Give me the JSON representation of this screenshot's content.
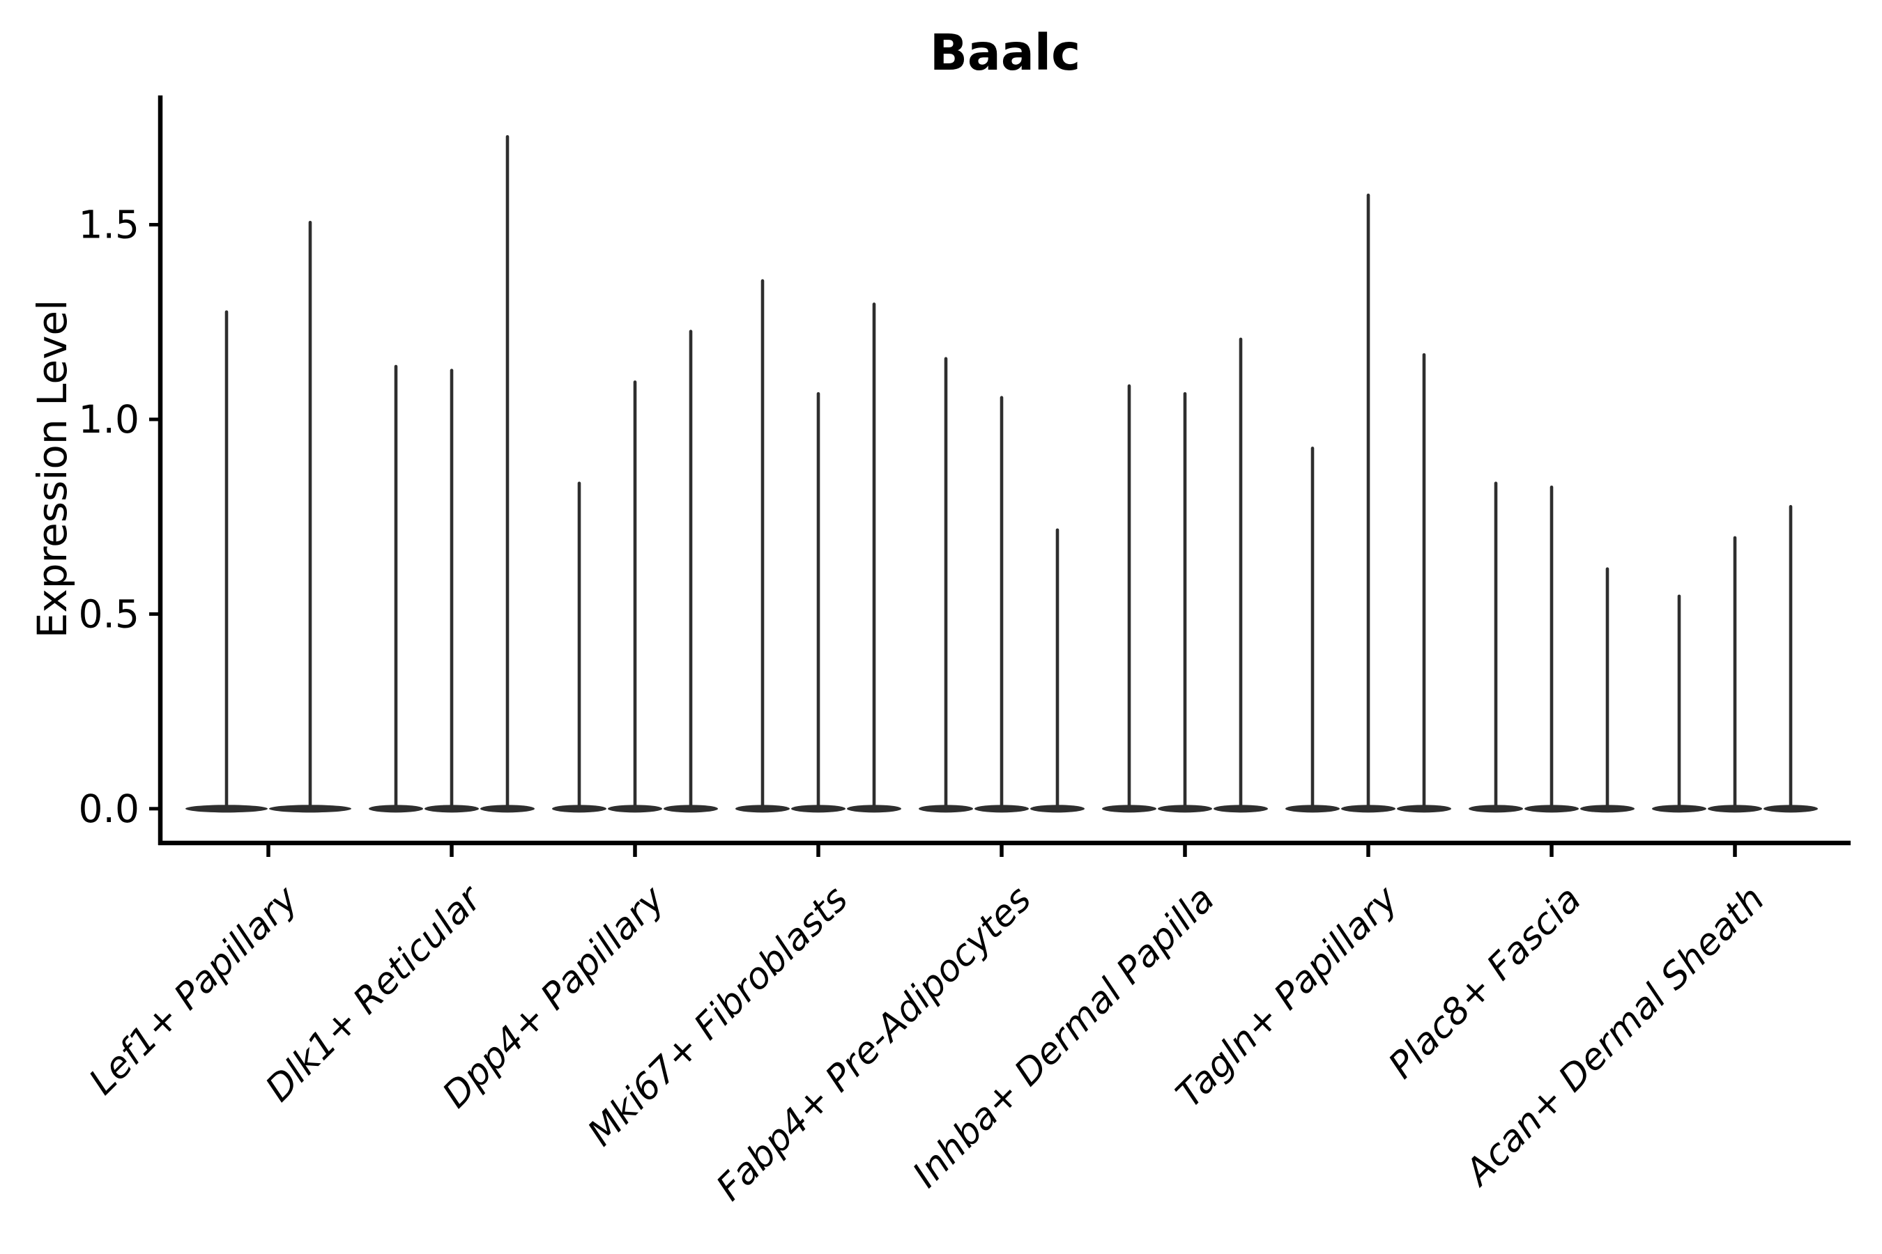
{
  "chart_data": {
    "type": "violin",
    "title": "Baalc",
    "xlabel": "",
    "ylabel": "Expression Level",
    "yticks": [
      0.0,
      0.5,
      1.0,
      1.5
    ],
    "ylim": [
      -0.088,
      1.832
    ],
    "grid": false,
    "legend": "none",
    "violin_color": "#2e2e2e",
    "axis_color": "#000000",
    "text_color": "#000000",
    "background_color": "#ffffff",
    "x_tick_label_angle_deg": 45,
    "categories": [
      "Lef1+ Papillary",
      "Dlk1+ Reticular",
      "Dpp4+ Papillary",
      "Mki67+ Fibroblasts",
      "Fabp4+ Pre-Adipocytes",
      "Inhba+ Dermal Papilla",
      "Tagln+ Papillary",
      "Plac8+ Fascia",
      "Acan+ Dermal Sheath"
    ],
    "groups": [
      {
        "category": "Lef1+ Papillary",
        "violin_peaks": [
          1.28,
          1.51
        ]
      },
      {
        "category": "Dlk1+ Reticular",
        "violin_peaks": [
          1.14,
          1.13,
          1.73
        ]
      },
      {
        "category": "Dpp4+ Papillary",
        "violin_peaks": [
          0.84,
          1.1,
          1.23
        ]
      },
      {
        "category": "Mki67+ Fibroblasts",
        "violin_peaks": [
          1.36,
          1.07,
          1.3
        ]
      },
      {
        "category": "Fabp4+ Pre-Adipocytes",
        "violin_peaks": [
          1.16,
          1.06,
          0.72
        ]
      },
      {
        "category": "Inhba+ Dermal Papilla",
        "violin_peaks": [
          1.09,
          1.07,
          1.21
        ]
      },
      {
        "category": "Tagln+ Papillary",
        "violin_peaks": [
          0.93,
          1.58,
          1.17
        ]
      },
      {
        "category": "Plac8+ Fascia",
        "violin_peaks": [
          0.84,
          0.83,
          0.62
        ]
      },
      {
        "category": "Acan+ Dermal Sheath",
        "violin_peaks": [
          0.55,
          0.7,
          0.78
        ]
      }
    ]
  }
}
